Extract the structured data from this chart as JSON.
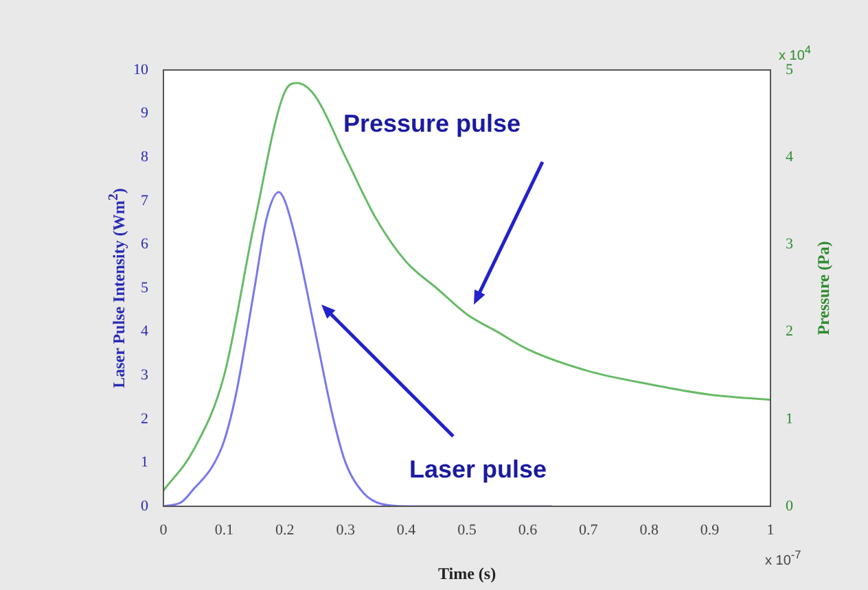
{
  "chart_data": {
    "type": "line",
    "xlabel": "Time (s)",
    "ylabel": "Laser Pulse Intensity (Wm$^{2}$)",
    "y2label": "Pressure (Pa)",
    "xlim": [
      0,
      1
    ],
    "xticks": [
      0,
      0.1,
      0.2,
      0.3,
      0.4,
      0.5,
      0.6,
      0.7,
      0.8,
      0.9,
      1
    ],
    "ylim": [
      0,
      10
    ],
    "yticks": [
      0,
      1,
      2,
      3,
      4,
      5,
      6,
      7,
      8,
      9,
      10
    ],
    "y2lim": [
      0,
      5
    ],
    "y2ticks": [
      0,
      1,
      2,
      3,
      4,
      5
    ],
    "marker": "none",
    "line_style": "solid",
    "series": [
      {
        "color": "#7777ee",
        "x": [
          0,
          0.03,
          0.05,
          0.08,
          0.1,
          0.12,
          0.15,
          0.17,
          0.19,
          0.2,
          0.22,
          0.25,
          0.28,
          0.3,
          0.33,
          0.36,
          0.4,
          0.5,
          0.6,
          0.64
        ],
        "values": [
          0,
          0.1,
          0.4,
          0.9,
          1.5,
          2.6,
          5.0,
          6.6,
          7.2,
          7.0,
          6.0,
          4.0,
          2.0,
          1.0,
          0.3,
          0.05,
          0,
          0,
          0,
          0
        ]
      },
      {
        "color": "#66bb66",
        "axis": "y2",
        "x": [
          0,
          0.05,
          0.1,
          0.15,
          0.2,
          0.22,
          0.25,
          0.3,
          0.35,
          0.4,
          0.45,
          0.5,
          0.55,
          0.6,
          0.7,
          0.8,
          0.9,
          1.0
        ],
        "values": [
          0.18,
          0.65,
          1.5,
          3.25,
          4.75,
          4.85,
          4.7,
          4.0,
          3.3,
          2.8,
          2.5,
          2.2,
          2.0,
          1.8,
          1.55,
          1.4,
          1.28,
          1.22
        ]
      }
    ],
    "annotations": [
      "x 10$^{4}$",
      "x 10$^{-7}$",
      "Pressure pulse",
      "Laser pulse"
    ]
  }
}
